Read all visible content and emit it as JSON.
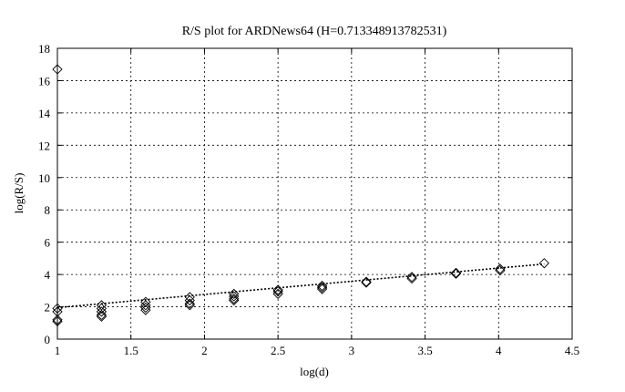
{
  "chart_data": {
    "type": "scatter",
    "title": "R/S plot for ARDNews64 (H=0.713348913782531)",
    "xlabel": "log(d)",
    "ylabel": "log(R/S)",
    "xlim": [
      1,
      4.5
    ],
    "ylim": [
      0,
      18
    ],
    "xticks": [
      1,
      1.5,
      2,
      2.5,
      3,
      3.5,
      4,
      4.5
    ],
    "xtick_labels": [
      "1",
      "1.5",
      "2",
      "2.5",
      "3",
      "3.5",
      "4",
      "4.5"
    ],
    "yticks": [
      0,
      2,
      4,
      6,
      8,
      10,
      12,
      14,
      16,
      18
    ],
    "ytick_labels": [
      "0",
      "2",
      "4",
      "6",
      "8",
      "10",
      "12",
      "14",
      "16",
      "18"
    ],
    "grid": true,
    "marker": "diamond",
    "points": [
      {
        "x": 1.0,
        "y": 16.7
      },
      {
        "x": 1.0,
        "y": 1.9
      },
      {
        "x": 1.0,
        "y": 1.7
      },
      {
        "x": 1.0,
        "y": 1.2
      },
      {
        "x": 1.0,
        "y": 1.1
      },
      {
        "x": 1.3,
        "y": 2.1
      },
      {
        "x": 1.3,
        "y": 1.9
      },
      {
        "x": 1.3,
        "y": 1.7
      },
      {
        "x": 1.3,
        "y": 1.5
      },
      {
        "x": 1.3,
        "y": 1.4
      },
      {
        "x": 1.6,
        "y": 2.3
      },
      {
        "x": 1.6,
        "y": 2.1
      },
      {
        "x": 1.6,
        "y": 1.95
      },
      {
        "x": 1.6,
        "y": 1.8
      },
      {
        "x": 1.9,
        "y": 2.6
      },
      {
        "x": 1.9,
        "y": 2.4
      },
      {
        "x": 1.9,
        "y": 2.2
      },
      {
        "x": 1.9,
        "y": 2.1
      },
      {
        "x": 2.2,
        "y": 2.8
      },
      {
        "x": 2.2,
        "y": 2.65
      },
      {
        "x": 2.2,
        "y": 2.5
      },
      {
        "x": 2.2,
        "y": 2.4
      },
      {
        "x": 2.5,
        "y": 3.05
      },
      {
        "x": 2.5,
        "y": 2.95
      },
      {
        "x": 2.5,
        "y": 2.8
      },
      {
        "x": 2.8,
        "y": 3.3
      },
      {
        "x": 2.8,
        "y": 3.2
      },
      {
        "x": 2.8,
        "y": 3.1
      },
      {
        "x": 3.1,
        "y": 3.55
      },
      {
        "x": 3.1,
        "y": 3.5
      },
      {
        "x": 3.41,
        "y": 3.85
      },
      {
        "x": 3.41,
        "y": 3.75
      },
      {
        "x": 3.71,
        "y": 4.1
      },
      {
        "x": 3.71,
        "y": 4.05
      },
      {
        "x": 4.01,
        "y": 4.35
      },
      {
        "x": 4.01,
        "y": 4.25
      },
      {
        "x": 4.31,
        "y": 4.7
      }
    ],
    "fit_line": {
      "x": [
        1.0,
        4.31
      ],
      "y": [
        1.95,
        4.65
      ]
    }
  }
}
